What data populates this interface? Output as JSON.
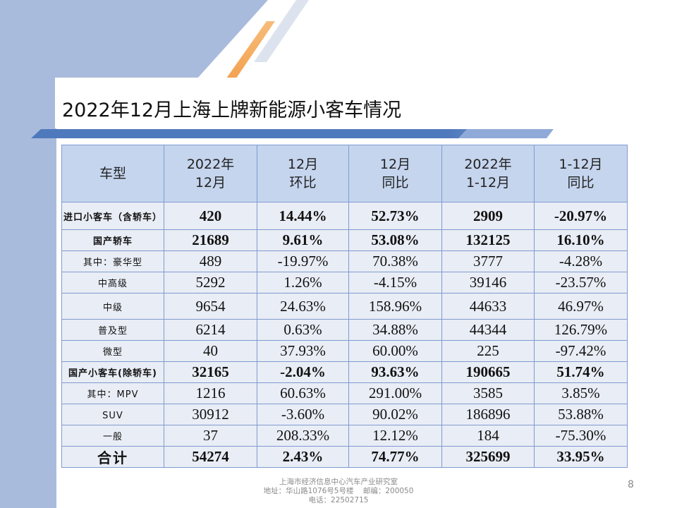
{
  "title": "2022年12月上海上牌新能源小客车情况",
  "table": {
    "headers": [
      "车型",
      "2022年\n12月",
      "12月\n环比",
      "12月\n同比",
      "2022年\n1-12月",
      "1-12月\n同比"
    ],
    "rows": [
      {
        "label": "进口小客车（含轿车）",
        "cells": [
          "420",
          "14.44%",
          "52.73%",
          "2909",
          "-20.97%"
        ]
      },
      {
        "label": "国产轿车",
        "cells": [
          "21689",
          "9.61%",
          "53.08%",
          "132125",
          "16.10%"
        ]
      },
      {
        "label": "其中：豪华型",
        "cells": [
          "489",
          "-19.97%",
          "70.38%",
          "3777",
          "-4.28%"
        ]
      },
      {
        "label": "中高级",
        "cells": [
          "5292",
          "1.26%",
          "-4.15%",
          "39146",
          "-23.57%"
        ]
      },
      {
        "label": "中级",
        "cells": [
          "9654",
          "24.63%",
          "158.96%",
          "44633",
          "46.97%"
        ]
      },
      {
        "label": "普及型",
        "cells": [
          "6214",
          "0.63%",
          "34.88%",
          "44344",
          "126.79%"
        ]
      },
      {
        "label": "微型",
        "cells": [
          "40",
          "37.93%",
          "60.00%",
          "225",
          "-97.42%"
        ]
      },
      {
        "label": "国产小客车(除轿车)",
        "cells": [
          "32165",
          "-2.04%",
          "93.63%",
          "190665",
          "51.74%"
        ]
      },
      {
        "label": "其中：MPV",
        "cells": [
          "1216",
          "60.63%",
          "291.00%",
          "3585",
          "3.85%"
        ]
      },
      {
        "label": "SUV",
        "cells": [
          "30912",
          "-3.60%",
          "90.02%",
          "186896",
          "53.88%"
        ]
      },
      {
        "label": "一般",
        "cells": [
          "37",
          "208.33%",
          "12.12%",
          "184",
          "-75.30%"
        ]
      },
      {
        "label": "合计",
        "cells": [
          "54274",
          "2.43%",
          "74.77%",
          "325699",
          "33.95%"
        ]
      }
    ]
  },
  "footer": {
    "line1": "上海市经济信息中心汽车产业研究室",
    "line2": "地址：华山路1076号5号楼    邮编：200050",
    "line3": "电话：22502715"
  },
  "page_number": "8"
}
